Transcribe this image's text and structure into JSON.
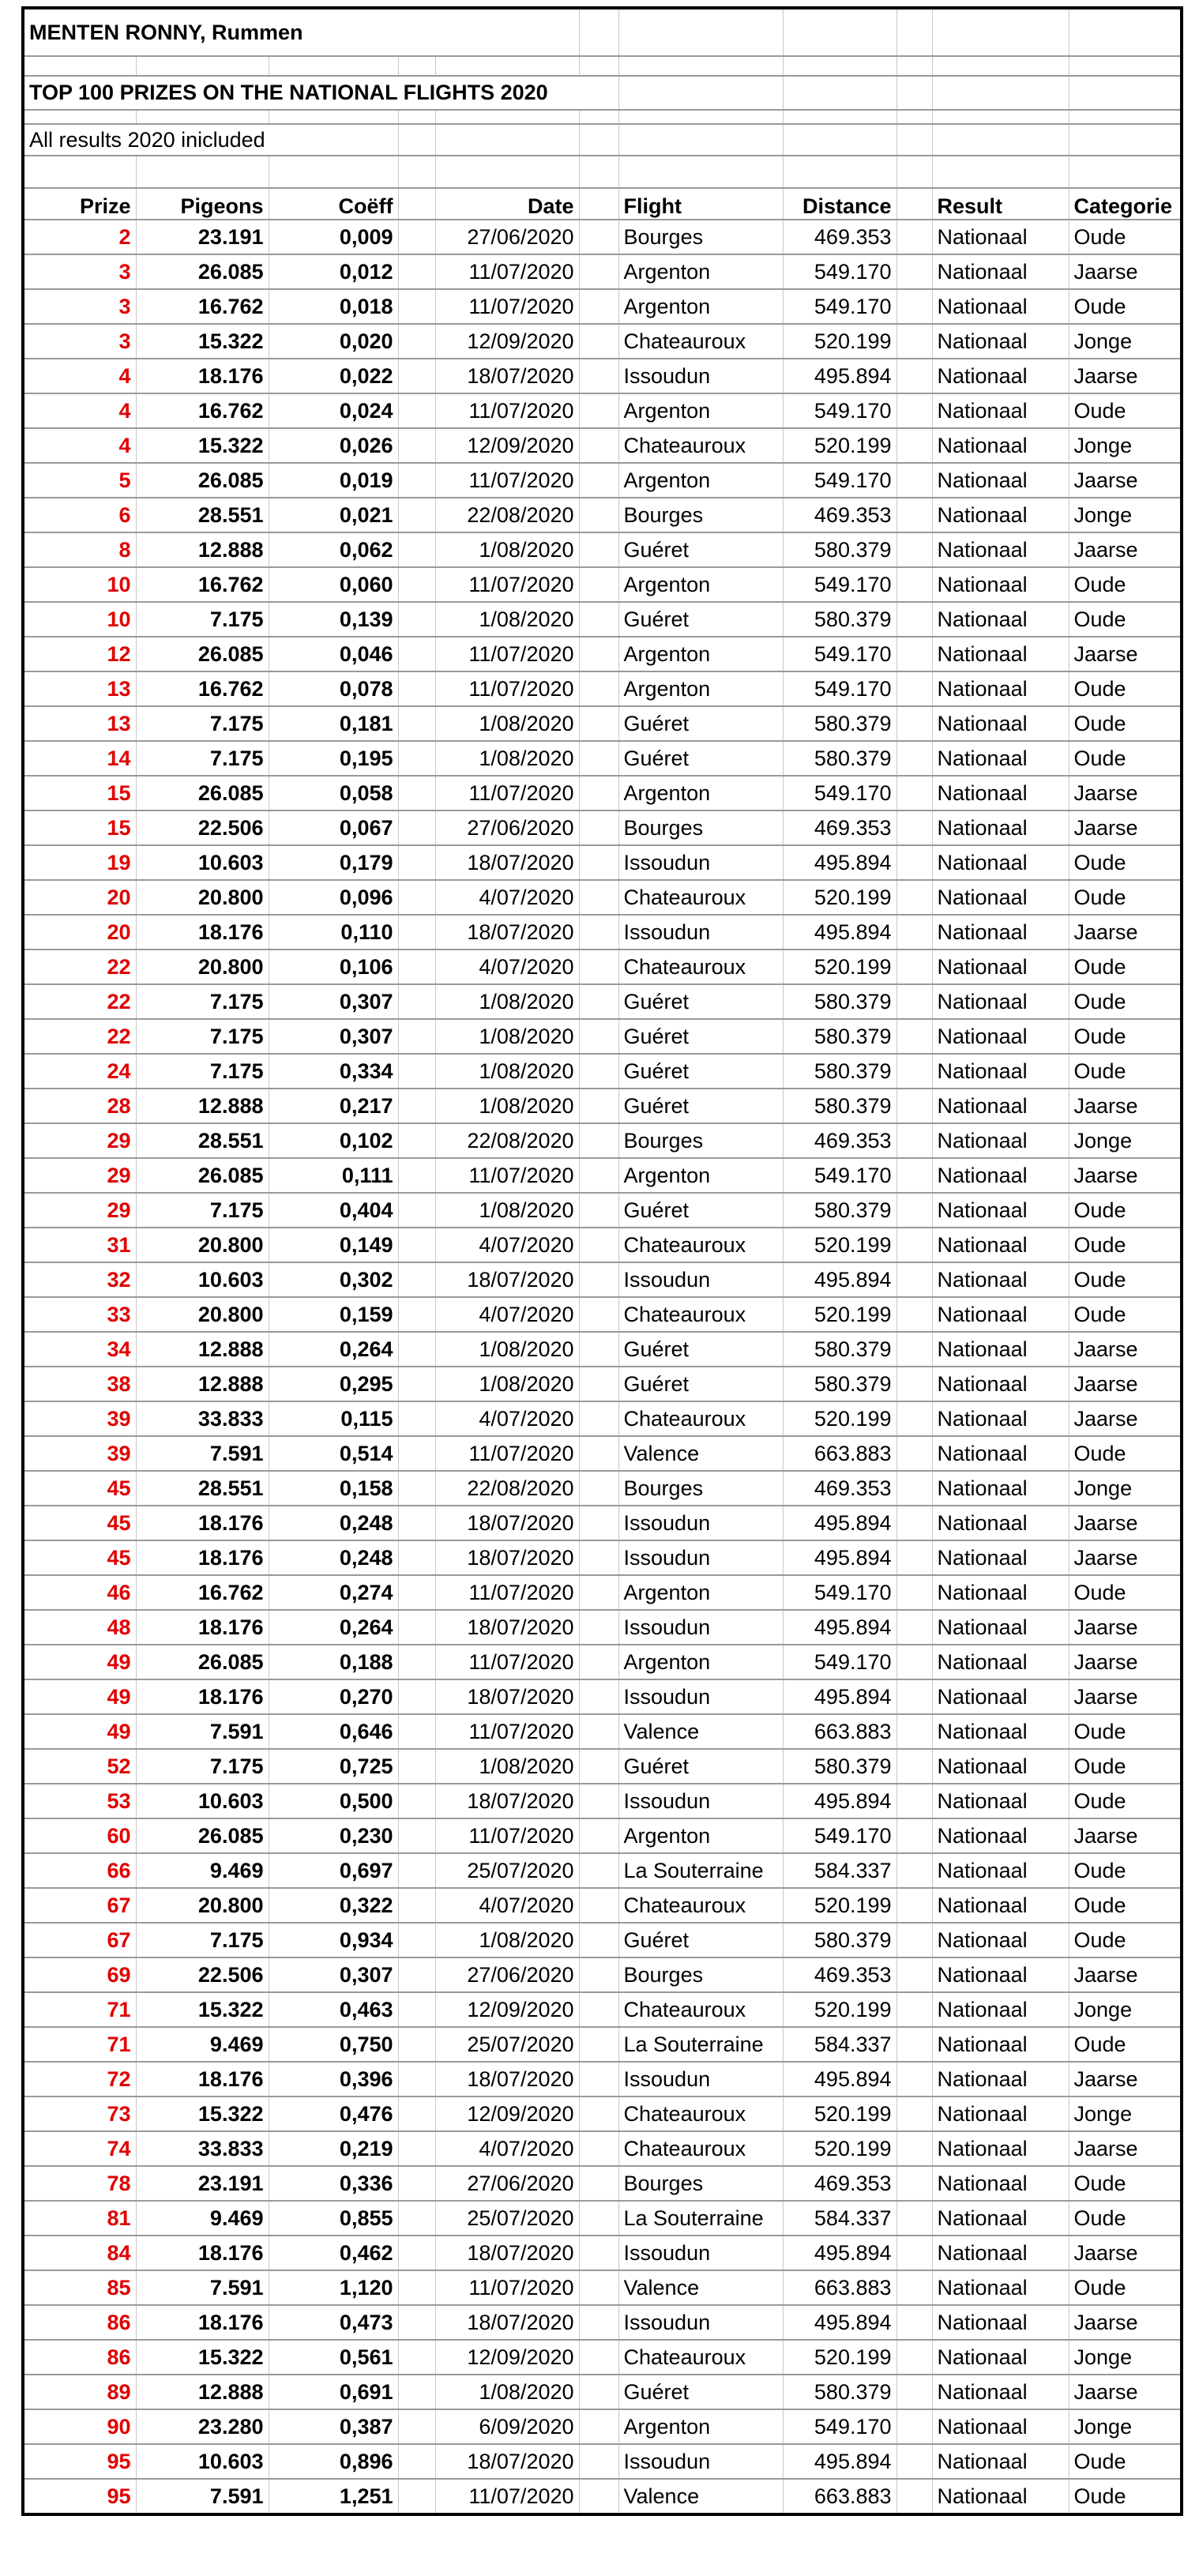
{
  "header": {
    "title": "MENTEN RONNY, Rummen",
    "subtitle": "TOP 100 PRIZES ON THE NATIONAL FLIGHTS 2020",
    "note": "All results 2020 inicluded"
  },
  "colors": {
    "prize": "#e00000",
    "text": "#000000",
    "border": "#000000"
  },
  "columns": {
    "prize": "Prize",
    "pigeons": "Pigeons",
    "coeff": "Coëff",
    "date": "Date",
    "flight": "Flight",
    "distance": "Distance",
    "result": "Result",
    "categorie": "Categorie"
  },
  "rows": [
    [
      "2",
      "23.191",
      "0,009",
      "27/06/2020",
      "Bourges",
      "469.353",
      "Nationaal",
      "Oude"
    ],
    [
      "3",
      "26.085",
      "0,012",
      "11/07/2020",
      "Argenton",
      "549.170",
      "Nationaal",
      "Jaarse"
    ],
    [
      "3",
      "16.762",
      "0,018",
      "11/07/2020",
      "Argenton",
      "549.170",
      "Nationaal",
      "Oude"
    ],
    [
      "3",
      "15.322",
      "0,020",
      "12/09/2020",
      "Chateauroux",
      "520.199",
      "Nationaal",
      "Jonge"
    ],
    [
      "4",
      "18.176",
      "0,022",
      "18/07/2020",
      "Issoudun",
      "495.894",
      "Nationaal",
      "Jaarse"
    ],
    [
      "4",
      "16.762",
      "0,024",
      "11/07/2020",
      "Argenton",
      "549.170",
      "Nationaal",
      "Oude"
    ],
    [
      "4",
      "15.322",
      "0,026",
      "12/09/2020",
      "Chateauroux",
      "520.199",
      "Nationaal",
      "Jonge"
    ],
    [
      "5",
      "26.085",
      "0,019",
      "11/07/2020",
      "Argenton",
      "549.170",
      "Nationaal",
      "Jaarse"
    ],
    [
      "6",
      "28.551",
      "0,021",
      "22/08/2020",
      "Bourges",
      "469.353",
      "Nationaal",
      "Jonge"
    ],
    [
      "8",
      "12.888",
      "0,062",
      "1/08/2020",
      "Guéret",
      "580.379",
      "Nationaal",
      "Jaarse"
    ],
    [
      "10",
      "16.762",
      "0,060",
      "11/07/2020",
      "Argenton",
      "549.170",
      "Nationaal",
      "Oude"
    ],
    [
      "10",
      "7.175",
      "0,139",
      "1/08/2020",
      "Guéret",
      "580.379",
      "Nationaal",
      "Oude"
    ],
    [
      "12",
      "26.085",
      "0,046",
      "11/07/2020",
      "Argenton",
      "549.170",
      "Nationaal",
      "Jaarse"
    ],
    [
      "13",
      "16.762",
      "0,078",
      "11/07/2020",
      "Argenton",
      "549.170",
      "Nationaal",
      "Oude"
    ],
    [
      "13",
      "7.175",
      "0,181",
      "1/08/2020",
      "Guéret",
      "580.379",
      "Nationaal",
      "Oude"
    ],
    [
      "14",
      "7.175",
      "0,195",
      "1/08/2020",
      "Guéret",
      "580.379",
      "Nationaal",
      "Oude"
    ],
    [
      "15",
      "26.085",
      "0,058",
      "11/07/2020",
      "Argenton",
      "549.170",
      "Nationaal",
      "Jaarse"
    ],
    [
      "15",
      "22.506",
      "0,067",
      "27/06/2020",
      "Bourges",
      "469.353",
      "Nationaal",
      "Jaarse"
    ],
    [
      "19",
      "10.603",
      "0,179",
      "18/07/2020",
      "Issoudun",
      "495.894",
      "Nationaal",
      "Oude"
    ],
    [
      "20",
      "20.800",
      "0,096",
      "4/07/2020",
      "Chateauroux",
      "520.199",
      "Nationaal",
      "Oude"
    ],
    [
      "20",
      "18.176",
      "0,110",
      "18/07/2020",
      "Issoudun",
      "495.894",
      "Nationaal",
      "Jaarse"
    ],
    [
      "22",
      "20.800",
      "0,106",
      "4/07/2020",
      "Chateauroux",
      "520.199",
      "Nationaal",
      "Oude"
    ],
    [
      "22",
      "7.175",
      "0,307",
      "1/08/2020",
      "Guéret",
      "580.379",
      "Nationaal",
      "Oude"
    ],
    [
      "22",
      "7.175",
      "0,307",
      "1/08/2020",
      "Guéret",
      "580.379",
      "Nationaal",
      "Oude"
    ],
    [
      "24",
      "7.175",
      "0,334",
      "1/08/2020",
      "Guéret",
      "580.379",
      "Nationaal",
      "Oude"
    ],
    [
      "28",
      "12.888",
      "0,217",
      "1/08/2020",
      "Guéret",
      "580.379",
      "Nationaal",
      "Jaarse"
    ],
    [
      "29",
      "28.551",
      "0,102",
      "22/08/2020",
      "Bourges",
      "469.353",
      "Nationaal",
      "Jonge"
    ],
    [
      "29",
      "26.085",
      "0,111",
      "11/07/2020",
      "Argenton",
      "549.170",
      "Nationaal",
      "Jaarse"
    ],
    [
      "29",
      "7.175",
      "0,404",
      "1/08/2020",
      "Guéret",
      "580.379",
      "Nationaal",
      "Oude"
    ],
    [
      "31",
      "20.800",
      "0,149",
      "4/07/2020",
      "Chateauroux",
      "520.199",
      "Nationaal",
      "Oude"
    ],
    [
      "32",
      "10.603",
      "0,302",
      "18/07/2020",
      "Issoudun",
      "495.894",
      "Nationaal",
      "Oude"
    ],
    [
      "33",
      "20.800",
      "0,159",
      "4/07/2020",
      "Chateauroux",
      "520.199",
      "Nationaal",
      "Oude"
    ],
    [
      "34",
      "12.888",
      "0,264",
      "1/08/2020",
      "Guéret",
      "580.379",
      "Nationaal",
      "Jaarse"
    ],
    [
      "38",
      "12.888",
      "0,295",
      "1/08/2020",
      "Guéret",
      "580.379",
      "Nationaal",
      "Jaarse"
    ],
    [
      "39",
      "33.833",
      "0,115",
      "4/07/2020",
      "Chateauroux",
      "520.199",
      "Nationaal",
      "Jaarse"
    ],
    [
      "39",
      "7.591",
      "0,514",
      "11/07/2020",
      "Valence",
      "663.883",
      "Nationaal",
      "Oude"
    ],
    [
      "45",
      "28.551",
      "0,158",
      "22/08/2020",
      "Bourges",
      "469.353",
      "Nationaal",
      "Jonge"
    ],
    [
      "45",
      "18.176",
      "0,248",
      "18/07/2020",
      "Issoudun",
      "495.894",
      "Nationaal",
      "Jaarse"
    ],
    [
      "45",
      "18.176",
      "0,248",
      "18/07/2020",
      "Issoudun",
      "495.894",
      "Nationaal",
      "Jaarse"
    ],
    [
      "46",
      "16.762",
      "0,274",
      "11/07/2020",
      "Argenton",
      "549.170",
      "Nationaal",
      "Oude"
    ],
    [
      "48",
      "18.176",
      "0,264",
      "18/07/2020",
      "Issoudun",
      "495.894",
      "Nationaal",
      "Jaarse"
    ],
    [
      "49",
      "26.085",
      "0,188",
      "11/07/2020",
      "Argenton",
      "549.170",
      "Nationaal",
      "Jaarse"
    ],
    [
      "49",
      "18.176",
      "0,270",
      "18/07/2020",
      "Issoudun",
      "495.894",
      "Nationaal",
      "Jaarse"
    ],
    [
      "49",
      "7.591",
      "0,646",
      "11/07/2020",
      "Valence",
      "663.883",
      "Nationaal",
      "Oude"
    ],
    [
      "52",
      "7.175",
      "0,725",
      "1/08/2020",
      "Guéret",
      "580.379",
      "Nationaal",
      "Oude"
    ],
    [
      "53",
      "10.603",
      "0,500",
      "18/07/2020",
      "Issoudun",
      "495.894",
      "Nationaal",
      "Oude"
    ],
    [
      "60",
      "26.085",
      "0,230",
      "11/07/2020",
      "Argenton",
      "549.170",
      "Nationaal",
      "Jaarse"
    ],
    [
      "66",
      "9.469",
      "0,697",
      "25/07/2020",
      "La Souterraine",
      "584.337",
      "Nationaal",
      "Oude"
    ],
    [
      "67",
      "20.800",
      "0,322",
      "4/07/2020",
      "Chateauroux",
      "520.199",
      "Nationaal",
      "Oude"
    ],
    [
      "67",
      "7.175",
      "0,934",
      "1/08/2020",
      "Guéret",
      "580.379",
      "Nationaal",
      "Oude"
    ],
    [
      "69",
      "22.506",
      "0,307",
      "27/06/2020",
      "Bourges",
      "469.353",
      "Nationaal",
      "Jaarse"
    ],
    [
      "71",
      "15.322",
      "0,463",
      "12/09/2020",
      "Chateauroux",
      "520.199",
      "Nationaal",
      "Jonge"
    ],
    [
      "71",
      "9.469",
      "0,750",
      "25/07/2020",
      "La Souterraine",
      "584.337",
      "Nationaal",
      "Oude"
    ],
    [
      "72",
      "18.176",
      "0,396",
      "18/07/2020",
      "Issoudun",
      "495.894",
      "Nationaal",
      "Jaarse"
    ],
    [
      "73",
      "15.322",
      "0,476",
      "12/09/2020",
      "Chateauroux",
      "520.199",
      "Nationaal",
      "Jonge"
    ],
    [
      "74",
      "33.833",
      "0,219",
      "4/07/2020",
      "Chateauroux",
      "520.199",
      "Nationaal",
      "Jaarse"
    ],
    [
      "78",
      "23.191",
      "0,336",
      "27/06/2020",
      "Bourges",
      "469.353",
      "Nationaal",
      "Oude"
    ],
    [
      "81",
      "9.469",
      "0,855",
      "25/07/2020",
      "La Souterraine",
      "584.337",
      "Nationaal",
      "Oude"
    ],
    [
      "84",
      "18.176",
      "0,462",
      "18/07/2020",
      "Issoudun",
      "495.894",
      "Nationaal",
      "Jaarse"
    ],
    [
      "85",
      "7.591",
      "1,120",
      "11/07/2020",
      "Valence",
      "663.883",
      "Nationaal",
      "Oude"
    ],
    [
      "86",
      "18.176",
      "0,473",
      "18/07/2020",
      "Issoudun",
      "495.894",
      "Nationaal",
      "Jaarse"
    ],
    [
      "86",
      "15.322",
      "0,561",
      "12/09/2020",
      "Chateauroux",
      "520.199",
      "Nationaal",
      "Jonge"
    ],
    [
      "89",
      "12.888",
      "0,691",
      "1/08/2020",
      "Guéret",
      "580.379",
      "Nationaal",
      "Jaarse"
    ],
    [
      "90",
      "23.280",
      "0,387",
      "6/09/2020",
      "Argenton",
      "549.170",
      "Nationaal",
      "Jonge"
    ],
    [
      "95",
      "10.603",
      "0,896",
      "18/07/2020",
      "Issoudun",
      "495.894",
      "Nationaal",
      "Oude"
    ],
    [
      "95",
      "7.591",
      "1,251",
      "11/07/2020",
      "Valence",
      "663.883",
      "Nationaal",
      "Oude"
    ]
  ]
}
